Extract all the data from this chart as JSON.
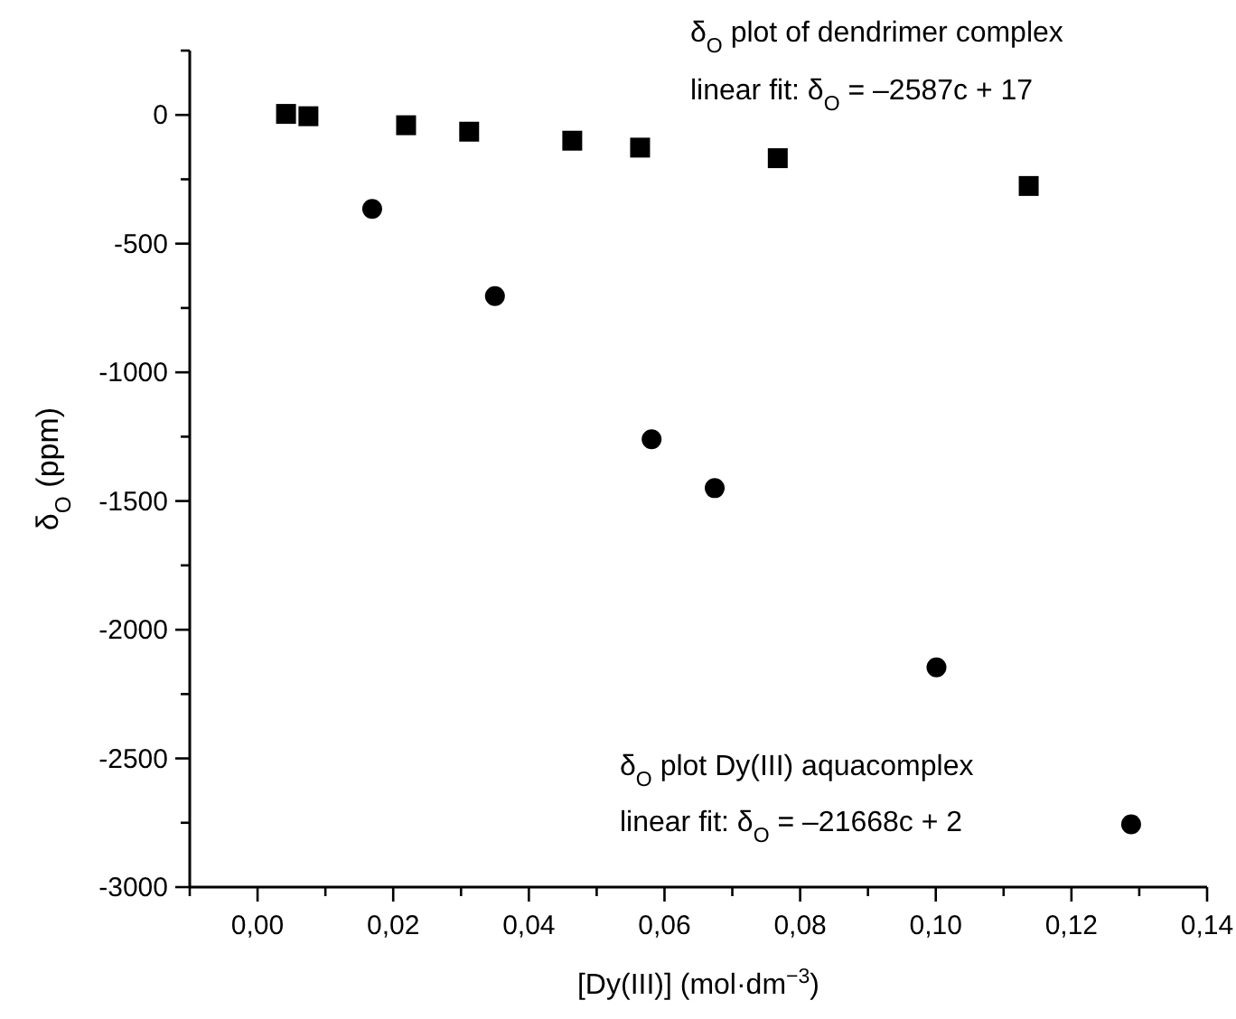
{
  "chart_data": {
    "type": "scatter",
    "xlabel": "[Dy(III)]   (mol·dm$^{−3}$)",
    "ylabel": "δ$_{O}$ (ppm)",
    "xlim": [
      -0.01,
      0.14
    ],
    "xticks": [
      {
        "value": -0.01,
        "label": null
      },
      {
        "value": 0,
        "label": "0,00"
      },
      {
        "value": 0.01,
        "label": null
      },
      {
        "value": 0.02,
        "label": "0,02"
      },
      {
        "value": 0.03,
        "label": null
      },
      {
        "value": 0.04,
        "label": "0,04"
      },
      {
        "value": 0.05,
        "label": null
      },
      {
        "value": 0.06,
        "label": "0,06"
      },
      {
        "value": 0.07,
        "label": null
      },
      {
        "value": 0.08,
        "label": "0,08"
      },
      {
        "value": 0.09,
        "label": null
      },
      {
        "value": 0.1,
        "label": "0,10"
      },
      {
        "value": 0.11,
        "label": null
      },
      {
        "value": 0.12,
        "label": "0,12"
      },
      {
        "value": 0.13,
        "label": null
      },
      {
        "value": 0.14,
        "label": "0,14"
      }
    ],
    "ylim": [
      -3000,
      250
    ],
    "yticks": [
      -3000,
      {
        "value": -2750,
        "label": null
      },
      -2500,
      {
        "value": -2250,
        "label": null
      },
      -2000,
      {
        "value": -1750,
        "label": null
      },
      -1500,
      {
        "value": -1250,
        "label": null
      },
      -1000,
      {
        "value": -750,
        "label": null
      },
      -500,
      {
        "value": -250,
        "label": null
      },
      0,
      {
        "value": 250,
        "label": null
      }
    ],
    "series": [
      {
        "color": "#000000",
        "marker": "square",
        "x": [
          0.0042,
          0.0075,
          0.0219,
          0.0312,
          0.0464,
          0.0564,
          0.0767,
          0.1137
        ],
        "values": [
          4,
          -5,
          -40,
          -65,
          -100,
          -127,
          -168,
          -276
        ]
      },
      {
        "color": "#000000",
        "marker": "circle",
        "x": [
          0.0169,
          0.035,
          0.0581,
          0.0674,
          0.1001,
          0.1288
        ],
        "values": [
          -365,
          -704,
          -1260,
          -1450,
          -2146,
          -2756
        ]
      }
    ],
    "annotations": [
      "δ$_{O}$ plot of dendrimer complex",
      "linear fit: δ$_{O}$ = –2587c + 17",
      "δ$_{O}$ plot Dy(III) aquacomplex",
      "linear fit: δ$_{O}$ = –21668c + 2"
    ]
  }
}
